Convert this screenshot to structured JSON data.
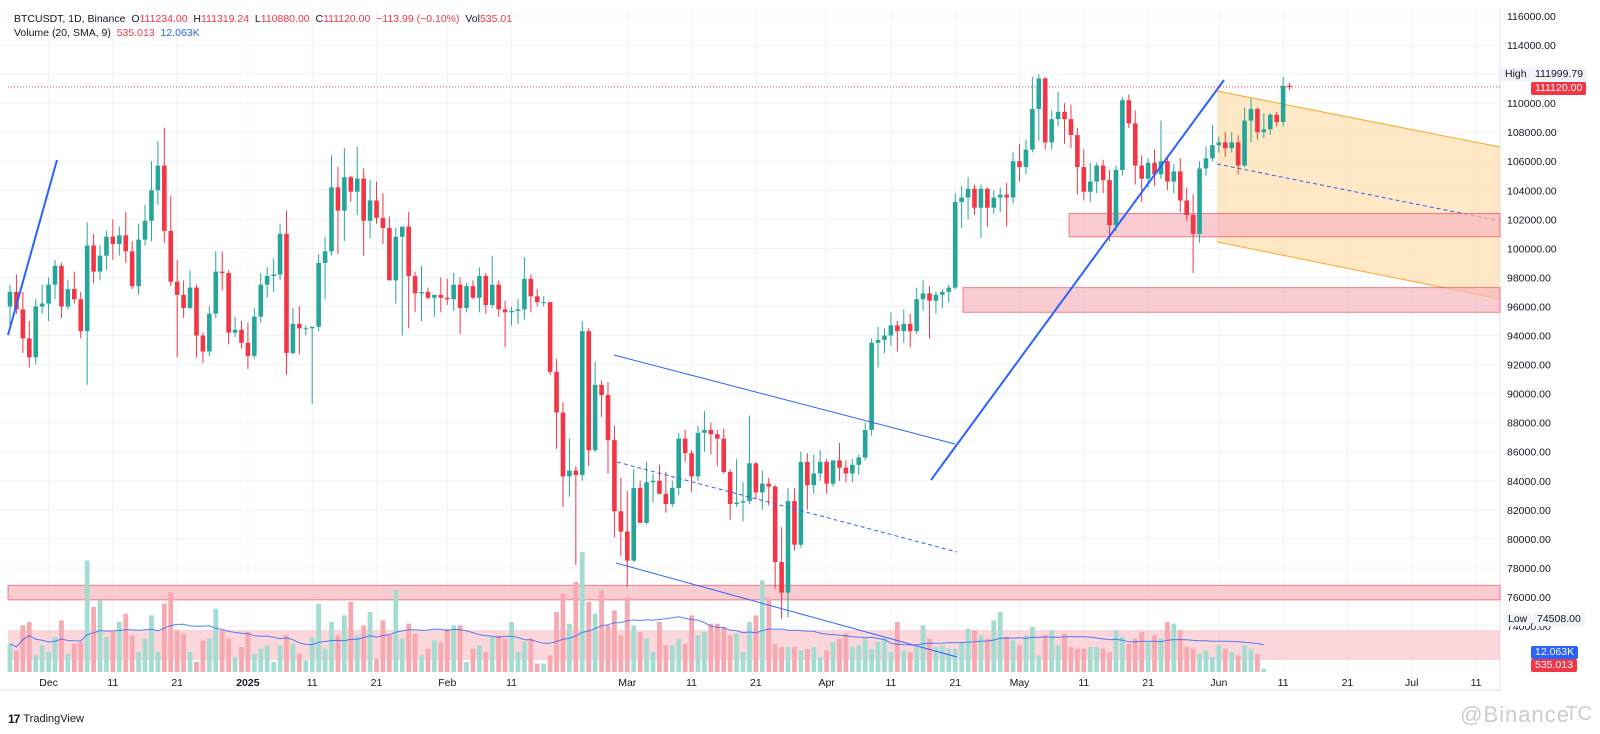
{
  "header": {
    "symbol": "BTCUSDT, 1D, Binance",
    "open_label": "O",
    "open": "111234.00",
    "high_label": "H",
    "high": "111319.24",
    "low_label": "L",
    "low": "110880.00",
    "close_label": "C",
    "close": "111120.00",
    "change": "−113.99 (−0.10%)",
    "vol_label": "Vol",
    "vol": "535.01",
    "indicator": "Volume (20, SMA, 9)",
    "ind_val1": "535.013",
    "ind_val2": "12.063K"
  },
  "price_scale": {
    "labels": [
      "116000.00",
      "114000.00",
      "112000.00",
      "110000.00",
      "108000.00",
      "106000.00",
      "104000.00",
      "102000.00",
      "100000.00",
      "98000.00",
      "96000.00",
      "94000.00",
      "92000.00",
      "90000.00",
      "88000.00",
      "86000.00",
      "84000.00",
      "82000.00",
      "80000.00",
      "78000.00",
      "76000.00",
      "74000.00"
    ],
    "high_tag": "High",
    "high_value": "111999.79",
    "current_value": "111120.00",
    "low_tag": "Low",
    "low_value": "74508.00",
    "vol_sma_value": "12.063K",
    "vol_value": "535.013"
  },
  "time_scale": {
    "labels": [
      "Dec",
      "11",
      "21",
      "2025",
      "11",
      "21",
      "Feb",
      "11",
      "Mar",
      "11",
      "21",
      "Apr",
      "11",
      "21",
      "May",
      "11",
      "21",
      "Jun",
      "11",
      "21",
      "Jul",
      "11"
    ]
  },
  "footer": {
    "brand": "TradingView",
    "logo": "17"
  },
  "watermark": {
    "text": "@Binance",
    "suffix": "TC"
  },
  "colors": {
    "up": "#26a69a",
    "down": "#f23645",
    "vol_up": "#a5dcd2",
    "vol_down": "#f7a9b1",
    "trend_blue": "#2962ff",
    "zone_fill": "#f7b7bd",
    "channel_fill": "#ffe0b2"
  },
  "chart_data": {
    "type": "candlestick",
    "symbol": "BTCUSDT",
    "interval": "1D",
    "exchange": "Binance",
    "ylim": [
      73000,
      117000
    ],
    "grid": true,
    "start_date": "2024-11-25",
    "candles": [
      [
        96000,
        97500,
        94500,
        97000
      ],
      [
        97000,
        98200,
        95500,
        95800
      ],
      [
        95800,
        97000,
        92800,
        93800
      ],
      [
        93800,
        95000,
        91800,
        92500
      ],
      [
        92500,
        96500,
        92000,
        96000
      ],
      [
        96000,
        97500,
        95500,
        96200
      ],
      [
        96200,
        98000,
        95000,
        97500
      ],
      [
        97500,
        99200,
        96500,
        98800
      ],
      [
        98800,
        99000,
        95200,
        96000
      ],
      [
        96000,
        97800,
        95800,
        97200
      ],
      [
        97200,
        98400,
        96200,
        96500
      ],
      [
        96500,
        97000,
        93800,
        94300
      ],
      [
        94300,
        101800,
        90600,
        100200
      ],
      [
        100200,
        101000,
        97600,
        98400
      ],
      [
        98400,
        100200,
        97800,
        99500
      ],
      [
        99500,
        101200,
        98500,
        100800
      ],
      [
        100800,
        102000,
        99200,
        100300
      ],
      [
        100300,
        101500,
        99500,
        100900
      ],
      [
        100900,
        102500,
        99000,
        99800
      ],
      [
        99800,
        100500,
        97200,
        97400
      ],
      [
        97400,
        101700,
        96800,
        100600
      ],
      [
        100600,
        103000,
        100200,
        101900
      ],
      [
        101900,
        106000,
        100500,
        104000
      ],
      [
        104000,
        107400,
        103000,
        105700
      ],
      [
        105700,
        108300,
        100400,
        101200
      ],
      [
        101200,
        103600,
        97400,
        97700
      ],
      [
        97700,
        99200,
        92500,
        96800
      ],
      [
        96800,
        97800,
        95200,
        95900
      ],
      [
        95900,
        98500,
        95800,
        97300
      ],
      [
        97300,
        97500,
        92500,
        94000
      ],
      [
        94000,
        94200,
        92100,
        92900
      ],
      [
        92900,
        96000,
        92600,
        95500
      ],
      [
        95500,
        99800,
        95200,
        98400
      ],
      [
        98400,
        99800,
        97100,
        98300
      ],
      [
        98300,
        98500,
        93400,
        94200
      ],
      [
        94200,
        95300,
        93900,
        94400
      ],
      [
        94400,
        95000,
        93100,
        93500
      ],
      [
        93500,
        94900,
        91700,
        92600
      ],
      [
        92600,
        95900,
        92400,
        95300
      ],
      [
        95300,
        98300,
        94900,
        97500
      ],
      [
        97500,
        98700,
        96600,
        98100
      ],
      [
        98100,
        99300,
        97000,
        98200
      ],
      [
        98200,
        101700,
        97800,
        101000
      ],
      [
        101000,
        102600,
        91300,
        92800
      ],
      [
        92800,
        95900,
        92700,
        94800
      ],
      [
        94800,
        96000,
        92700,
        94500
      ],
      [
        94500,
        94700,
        94000,
        94500
      ],
      [
        94500,
        94600,
        89300,
        94600
      ],
      [
        94600,
        99600,
        94300,
        99000
      ],
      [
        99000,
        100800,
        96500,
        99800
      ],
      [
        99800,
        106400,
        99500,
        104200
      ],
      [
        104200,
        105600,
        99600,
        102600
      ],
      [
        102600,
        106900,
        100500,
        104900
      ],
      [
        104900,
        105000,
        103200,
        103900
      ],
      [
        103900,
        107000,
        102300,
        104800
      ],
      [
        104800,
        105500,
        99500,
        101900
      ],
      [
        101900,
        104700,
        100700,
        103300
      ],
      [
        103300,
        104600,
        101700,
        102100
      ],
      [
        102100,
        103800,
        100300,
        101400
      ],
      [
        101400,
        102200,
        97800,
        97800
      ],
      [
        97800,
        101400,
        96200,
        100800
      ],
      [
        100800,
        101500,
        94000,
        101500
      ],
      [
        101500,
        102500,
        94500,
        98100
      ],
      [
        98100,
        98400,
        95600,
        96900
      ],
      [
        96900,
        98800,
        95000,
        97000
      ],
      [
        97000,
        97300,
        96500,
        96600
      ],
      [
        96600,
        96800,
        95300,
        96800
      ],
      [
        96800,
        98000,
        95600,
        96600
      ],
      [
        96600,
        97900,
        96100,
        96500
      ],
      [
        96500,
        98300,
        95700,
        97500
      ],
      [
        97500,
        98000,
        94100,
        95900
      ],
      [
        95900,
        97600,
        95600,
        97400
      ],
      [
        97400,
        97800,
        96500,
        96600
      ],
      [
        96600,
        98700,
        95600,
        98100
      ],
      [
        98100,
        98300,
        95500,
        96100
      ],
      [
        96100,
        99500,
        95900,
        97500
      ],
      [
        97500,
        97800,
        95300,
        95800
      ],
      [
        95800,
        96400,
        93200,
        95600
      ],
      [
        95600,
        96000,
        94700,
        95700
      ],
      [
        95700,
        96500,
        94800,
        95800
      ],
      [
        95800,
        99400,
        95100,
        97900
      ],
      [
        97900,
        98200,
        95600,
        96700
      ],
      [
        96700,
        97200,
        96000,
        96300
      ],
      [
        96300,
        96700,
        96000,
        96300
      ],
      [
        96300,
        96300,
        91300,
        91500
      ],
      [
        91500,
        92400,
        86200,
        88700
      ],
      [
        88700,
        89400,
        82200,
        84300
      ],
      [
        84300,
        86900,
        82900,
        84700
      ],
      [
        84700,
        85000,
        78200,
        84400
      ],
      [
        84400,
        95000,
        84000,
        94300
      ],
      [
        94300,
        94500,
        85000,
        86100
      ],
      [
        86100,
        92200,
        86000,
        90600
      ],
      [
        90600,
        90900,
        88400,
        89900
      ],
      [
        89900,
        90800,
        84500,
        86800
      ],
      [
        86800,
        87800,
        80100,
        81900
      ],
      [
        81900,
        84200,
        78800,
        80500
      ],
      [
        80500,
        83300,
        76700,
        78500
      ],
      [
        78500,
        84800,
        78400,
        83500
      ],
      [
        83500,
        84000,
        81200,
        81100
      ],
      [
        81100,
        85300,
        81000,
        83900
      ],
      [
        83900,
        84500,
        82500,
        84000
      ],
      [
        84000,
        85100,
        83100,
        83100
      ],
      [
        83100,
        84600,
        81800,
        82400
      ],
      [
        82400,
        84000,
        82200,
        83500
      ],
      [
        83500,
        87300,
        83000,
        86900
      ],
      [
        86900,
        87500,
        85300,
        85900
      ],
      [
        85900,
        86100,
        83200,
        84300
      ],
      [
        84300,
        87800,
        84000,
        87300
      ],
      [
        87300,
        88800,
        86000,
        87500
      ],
      [
        87500,
        88000,
        85800,
        87200
      ],
      [
        87200,
        87500,
        85000,
        86900
      ],
      [
        86900,
        87600,
        84500,
        84600
      ],
      [
        84600,
        84800,
        81300,
        82400
      ],
      [
        82400,
        85500,
        82200,
        82500
      ],
      [
        82500,
        83900,
        81200,
        82600
      ],
      [
        82600,
        88500,
        82400,
        85200
      ],
      [
        85200,
        85300,
        82700,
        83200
      ],
      [
        83200,
        84700,
        82000,
        83800
      ],
      [
        83800,
        84200,
        82300,
        83600
      ],
      [
        83600,
        83700,
        76600,
        78400
      ],
      [
        78400,
        80800,
        74500,
        76300
      ],
      [
        76300,
        83500,
        74600,
        82600
      ],
      [
        82600,
        83500,
        79200,
        79600
      ],
      [
        79600,
        86000,
        79400,
        85300
      ],
      [
        85300,
        85900,
        82000,
        83700
      ],
      [
        83700,
        85800,
        83100,
        84500
      ],
      [
        84500,
        86100,
        84000,
        85300
      ],
      [
        85300,
        85500,
        83100,
        83800
      ],
      [
        83800,
        85400,
        83600,
        85400
      ],
      [
        85400,
        86600,
        84000,
        84900
      ],
      [
        84900,
        85400,
        83900,
        84500
      ],
      [
        84500,
        85500,
        83900,
        85100
      ],
      [
        85100,
        85800,
        84400,
        85600
      ],
      [
        85600,
        88000,
        85400,
        87500
      ],
      [
        87500,
        93800,
        87100,
        93500
      ],
      [
        93500,
        94600,
        91800,
        93700
      ],
      [
        93700,
        94500,
        92800,
        94000
      ],
      [
        94000,
        95600,
        93300,
        94700
      ],
      [
        94700,
        95000,
        92900,
        94300
      ],
      [
        94300,
        95800,
        93500,
        94800
      ],
      [
        94800,
        95500,
        93200,
        94300
      ],
      [
        94300,
        97300,
        94100,
        96500
      ],
      [
        96500,
        97800,
        95700,
        96900
      ],
      [
        96900,
        97400,
        93800,
        96400
      ],
      [
        96400,
        97000,
        95500,
        96800
      ],
      [
        96800,
        97200,
        95900,
        97000
      ],
      [
        97000,
        97500,
        96300,
        97300
      ],
      [
        97300,
        103800,
        97200,
        103200
      ],
      [
        103200,
        104300,
        101400,
        103500
      ],
      [
        103500,
        104900,
        102000,
        104100
      ],
      [
        104100,
        104400,
        102300,
        102800
      ],
      [
        102800,
        104400,
        100700,
        104100
      ],
      [
        104100,
        104200,
        101500,
        102800
      ],
      [
        102800,
        104000,
        102400,
        103500
      ],
      [
        103500,
        104200,
        102500,
        103700
      ],
      [
        103700,
        104500,
        101500,
        103500
      ],
      [
        103500,
        106600,
        103100,
        106000
      ],
      [
        106000,
        107200,
        104600,
        105600
      ],
      [
        105600,
        107500,
        105100,
        106800
      ],
      [
        106800,
        111800,
        106600,
        109600
      ],
      [
        109600,
        112000,
        107400,
        111700
      ],
      [
        111700,
        111800,
        106800,
        107300
      ],
      [
        107300,
        109500,
        106800,
        108900
      ],
      [
        108900,
        110800,
        108400,
        109400
      ],
      [
        109400,
        110000,
        107200,
        108900
      ],
      [
        108900,
        109900,
        106900,
        107800
      ],
      [
        107800,
        108300,
        103700,
        105600
      ],
      [
        105600,
        106800,
        103300,
        103900
      ],
      [
        103900,
        105900,
        103200,
        104600
      ],
      [
        104600,
        105900,
        103800,
        105700
      ],
      [
        105700,
        106100,
        103800,
        104700
      ],
      [
        104700,
        105400,
        100500,
        101600
      ],
      [
        101600,
        105700,
        101200,
        105400
      ],
      [
        105400,
        110400,
        105000,
        110200
      ],
      [
        110200,
        110600,
        108300,
        108600
      ],
      [
        108600,
        109500,
        104400,
        105700
      ],
      [
        105700,
        106400,
        103200,
        104800
      ],
      [
        104800,
        106200,
        104200,
        105900
      ],
      [
        105900,
        106800,
        104300,
        105100
      ],
      [
        105100,
        108800,
        104800,
        106000
      ],
      [
        106000,
        106400,
        104000,
        104600
      ],
      [
        104600,
        105800,
        103800,
        105300
      ],
      [
        105300,
        106200,
        102500,
        103300
      ],
      [
        103300,
        104200,
        101900,
        102300
      ],
      [
        102300,
        103700,
        98300,
        101000
      ],
      [
        101000,
        106000,
        100400,
        105500
      ],
      [
        105500,
        107000,
        105000,
        106200
      ],
      [
        106200,
        108500,
        106000,
        107100
      ],
      [
        107100,
        107700,
        106600,
        107300
      ],
      [
        107300,
        108000,
        106300,
        106900
      ],
      [
        106900,
        108000,
        106600,
        107300
      ],
      [
        107300,
        107800,
        105100,
        105700
      ],
      [
        105700,
        109700,
        105600,
        108800
      ],
      [
        108800,
        110300,
        107300,
        109600
      ],
      [
        109600,
        109700,
        107500,
        108000
      ],
      [
        108000,
        109300,
        107600,
        108200
      ],
      [
        108200,
        109300,
        107800,
        109200
      ],
      [
        109200,
        109400,
        108400,
        108700
      ],
      [
        108700,
        111800,
        108400,
        111200
      ],
      [
        111200,
        111400,
        110900,
        111100
      ]
    ],
    "volume": [
      17,
      13,
      28,
      30,
      10,
      16,
      12,
      21,
      31,
      11,
      17,
      18,
      67,
      39,
      43,
      21,
      24,
      30,
      35,
      22,
      12,
      20,
      34,
      12,
      41,
      48,
      25,
      23,
      12,
      6,
      19,
      20,
      38,
      25,
      20,
      9,
      15,
      24,
      11,
      14,
      16,
      6,
      16,
      22,
      17,
      11,
      7,
      21,
      41,
      14,
      30,
      22,
      34,
      42,
      22,
      28,
      36,
      8,
      31,
      22,
      49,
      20,
      29,
      23,
      10,
      14,
      19,
      18,
      26,
      28,
      28,
      6,
      14,
      16,
      12,
      21,
      22,
      20,
      30,
      12,
      18,
      20,
      5,
      5,
      10,
      36,
      47,
      29,
      54,
      72,
      42,
      35,
      49,
      28,
      37,
      22,
      45,
      28,
      24,
      20,
      12,
      30,
      16,
      16,
      20,
      17,
      34,
      22,
      24,
      29,
      29,
      27,
      22,
      23,
      12,
      30,
      34,
      55,
      44,
      17,
      15,
      15,
      15,
      13,
      14,
      15,
      9,
      13,
      18,
      20,
      23,
      15,
      16,
      20,
      14,
      18,
      20,
      12,
      30,
      13,
      12,
      15,
      28,
      20,
      15,
      16,
      14,
      14,
      18,
      26,
      25,
      22,
      20,
      31,
      36,
      21,
      19,
      16,
      22,
      27,
      10,
      22,
      25,
      16,
      23,
      15,
      14,
      14,
      15,
      15,
      14,
      12,
      25,
      21,
      17,
      20,
      24,
      18,
      22,
      20,
      30,
      29,
      25,
      15,
      14,
      11,
      13,
      9,
      16,
      14,
      12,
      10,
      16,
      14,
      11,
      2
    ],
    "horizontal_zones": [
      {
        "from": 100800,
        "to": 102400
      },
      {
        "from": 95600,
        "to": 97300
      },
      {
        "from": 75800,
        "to": 76800
      }
    ],
    "price_line": 111120,
    "high_marker": 111999.79,
    "low_marker": 74508
  }
}
